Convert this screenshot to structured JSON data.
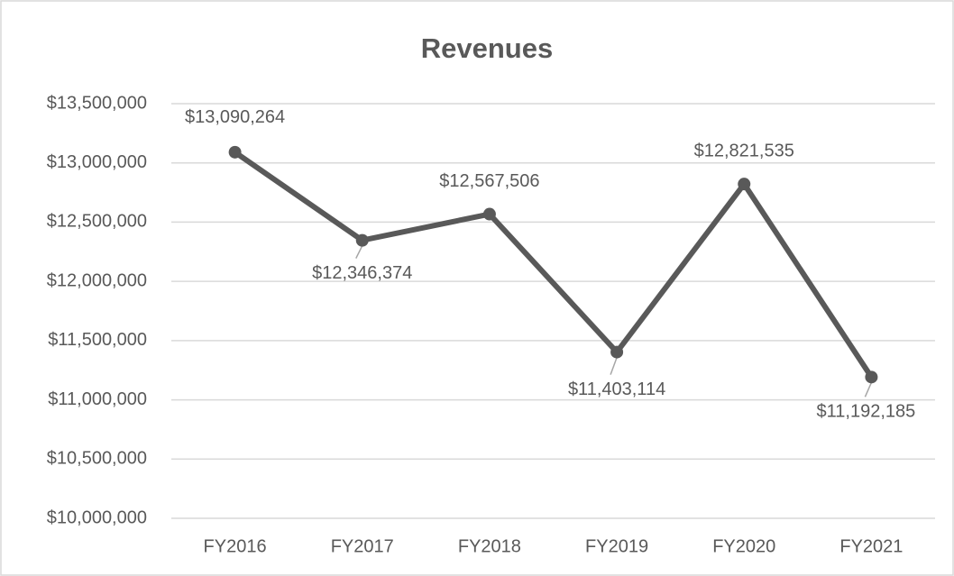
{
  "chart_data": {
    "type": "line",
    "title": "Revenues",
    "categories": [
      "FY2016",
      "FY2017",
      "FY2018",
      "FY2019",
      "FY2020",
      "FY2021"
    ],
    "series": [
      {
        "name": "Revenues",
        "color": "#595959",
        "values": [
          13090264,
          12346374,
          12567506,
          11403114,
          12821535,
          11192185
        ],
        "value_labels": [
          "$13,090,264",
          "$12,346,374",
          "$12,567,506",
          "$11,403,114",
          "$12,821,535",
          "$11,192,185"
        ]
      }
    ],
    "ylim": [
      10000000,
      13500000
    ],
    "yticks": [
      {
        "value": 10000000,
        "label": "$10,000,000"
      },
      {
        "value": 10500000,
        "label": "$10,500,000"
      },
      {
        "value": 11000000,
        "label": "$11,000,000"
      },
      {
        "value": 11500000,
        "label": "$11,500,000"
      },
      {
        "value": 12000000,
        "label": "$12,000,000"
      },
      {
        "value": 12500000,
        "label": "$12,500,000"
      },
      {
        "value": 13000000,
        "label": "$13,000,000"
      },
      {
        "value": 13500000,
        "label": "$13,500,000"
      }
    ],
    "grid": true
  }
}
